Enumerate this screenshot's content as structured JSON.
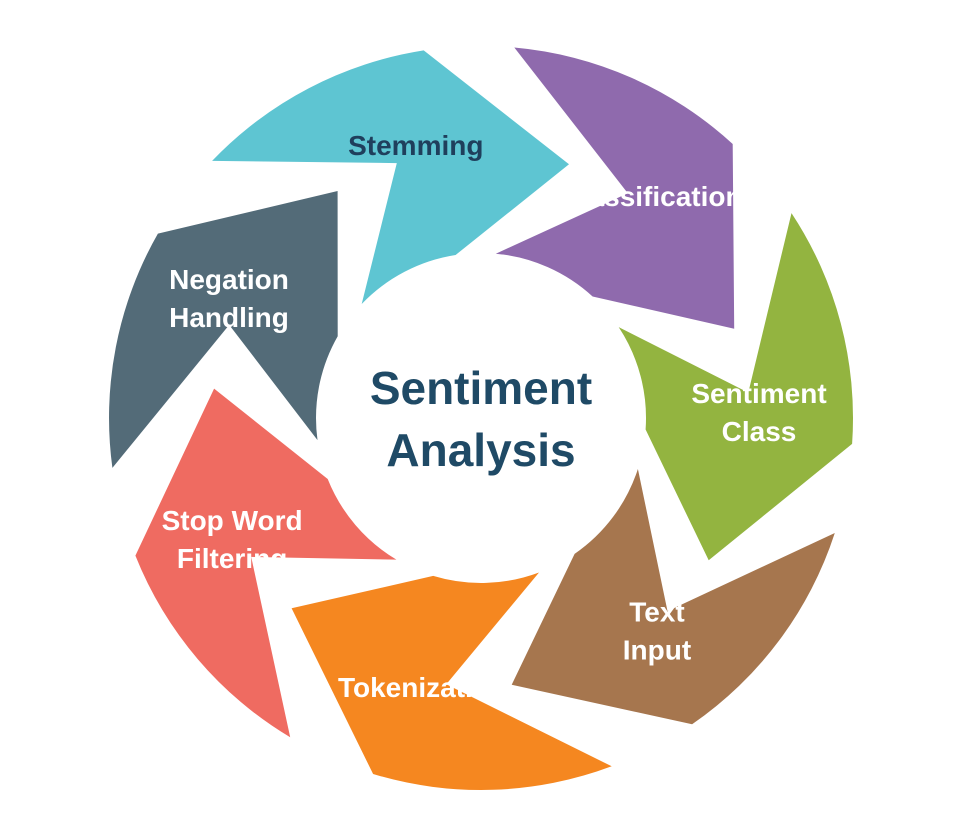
{
  "center": {
    "line1": "Sentiment",
    "line2": "Analysis"
  },
  "steps": [
    {
      "lines": [
        "Text",
        "Input"
      ],
      "color": "#a6764e",
      "text_color": "#ffffff"
    },
    {
      "lines": [
        "Tokenization"
      ],
      "color": "#f58720",
      "text_color": "#ffffff"
    },
    {
      "lines": [
        "Stop Word",
        "Filtering"
      ],
      "color": "#ef6b61",
      "text_color": "#ffffff"
    },
    {
      "lines": [
        "Negation",
        "Handling"
      ],
      "color": "#536b78",
      "text_color": "#ffffff"
    },
    {
      "lines": [
        "Stemming"
      ],
      "color": "#5ec5d2",
      "text_color": "#1f3f5c"
    },
    {
      "lines": [
        "Classification"
      ],
      "color": "#8f6aad",
      "text_color": "#ffffff"
    },
    {
      "lines": [
        "Sentiment",
        "Class"
      ],
      "color": "#93b440",
      "text_color": "#ffffff"
    }
  ]
}
